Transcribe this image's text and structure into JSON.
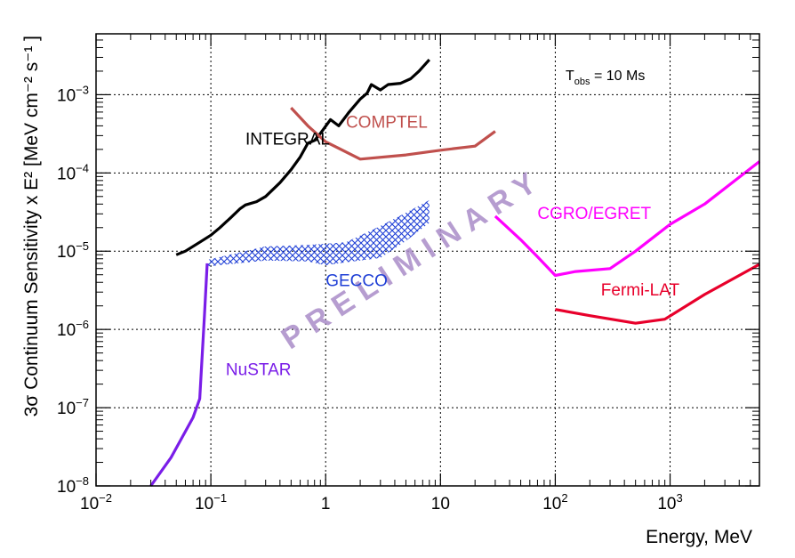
{
  "chart_data": {
    "type": "line",
    "xlabel": "Energy, MeV",
    "ylabel": "3σ Continuum Sensitivity x E² [MeV cm⁻² s⁻¹ ]",
    "xscale": "log",
    "yscale": "log",
    "xlim": [
      0.01,
      6000
    ],
    "ylim": [
      1e-08,
      0.006
    ],
    "grid": true,
    "x_ticks": [
      {
        "value": 0.01,
        "base": "10",
        "exp": "−2"
      },
      {
        "value": 0.1,
        "base": "10",
        "exp": "−1"
      },
      {
        "value": 1,
        "base": "1",
        "exp": ""
      },
      {
        "value": 10,
        "base": "10",
        "exp": ""
      },
      {
        "value": 100,
        "base": "10",
        "exp": "2"
      },
      {
        "value": 1000,
        "base": "10",
        "exp": "3"
      }
    ],
    "y_ticks": [
      {
        "value": 1e-08,
        "base": "10",
        "exp": "−8"
      },
      {
        "value": 1e-07,
        "base": "10",
        "exp": "−7"
      },
      {
        "value": 1e-06,
        "base": "10",
        "exp": "−6"
      },
      {
        "value": 1e-05,
        "base": "10",
        "exp": "−5"
      },
      {
        "value": 0.0001,
        "base": "10",
        "exp": "−4"
      },
      {
        "value": 0.001,
        "base": "10",
        "exp": "−3"
      }
    ],
    "annotation": {
      "main": "T",
      "sub": "obs",
      "rest": " = 10 Ms"
    },
    "watermark": "PRELIMINARY",
    "watermark_color": "#a98cc8",
    "series": [
      {
        "name": "INTEGRAL",
        "color": "#000000",
        "label_pos": {
          "x": 0.2,
          "y": 0.00023
        },
        "points": [
          [
            0.05,
            9e-06
          ],
          [
            0.06,
            1e-05
          ],
          [
            0.08,
            1.3e-05
          ],
          [
            0.1,
            1.6e-05
          ],
          [
            0.12,
            2e-05
          ],
          [
            0.15,
            2.7e-05
          ],
          [
            0.18,
            3.5e-05
          ],
          [
            0.2,
            3.9e-05
          ],
          [
            0.25,
            4.3e-05
          ],
          [
            0.3,
            5e-05
          ],
          [
            0.4,
            7.5e-05
          ],
          [
            0.5,
            0.00011
          ],
          [
            0.6,
            0.00016
          ],
          [
            0.7,
            0.00024
          ],
          [
            0.8,
            0.00026
          ],
          [
            0.9,
            0.00032
          ],
          [
            1.1,
            0.00048
          ],
          [
            1.3,
            0.0004
          ],
          [
            1.6,
            0.0006
          ],
          [
            2.0,
            0.00088
          ],
          [
            2.3,
            0.00105
          ],
          [
            2.5,
            0.00135
          ],
          [
            3.0,
            0.00115
          ],
          [
            3.5,
            0.00135
          ],
          [
            4.5,
            0.0014
          ],
          [
            5.5,
            0.0016
          ],
          [
            6.5,
            0.002
          ],
          [
            8.0,
            0.0028
          ]
        ]
      },
      {
        "name": "COMPTEL",
        "color": "#c0504d",
        "label_pos": {
          "x": 1.5,
          "y": 0.00038
        },
        "points": [
          [
            0.5,
            0.00068
          ],
          [
            0.7,
            0.0004
          ],
          [
            1.0,
            0.00025
          ],
          [
            2.0,
            0.00015
          ],
          [
            5.0,
            0.00017
          ],
          [
            10.0,
            0.000195
          ],
          [
            20.0,
            0.00022
          ],
          [
            30.0,
            0.00034
          ]
        ]
      },
      {
        "name": "CGRO/EGRET",
        "color": "#ff00ff",
        "label_pos": {
          "x": 70,
          "y": 2.6e-05
        },
        "points": [
          [
            30,
            2.8e-05
          ],
          [
            50,
            1.4e-05
          ],
          [
            70,
            8.5e-06
          ],
          [
            100,
            4.9e-06
          ],
          [
            150,
            5.5e-06
          ],
          [
            300,
            6e-06
          ],
          [
            500,
            1e-05
          ],
          [
            1000,
            2.2e-05
          ],
          [
            2000,
            4e-05
          ],
          [
            6000,
            0.00014
          ]
        ]
      },
      {
        "name": "Fermi-LAT",
        "color": "#e8002b",
        "label_pos": {
          "x": 250,
          "y": 2.7e-06
        },
        "points": [
          [
            100,
            1.8e-06
          ],
          [
            200,
            1.5e-06
          ],
          [
            500,
            1.2e-06
          ],
          [
            900,
            1.35e-06
          ],
          [
            2000,
            2.8e-06
          ],
          [
            6000,
            6.8e-06
          ]
        ]
      },
      {
        "name": "NuSTAR",
        "color": "#7a1de8",
        "label_pos": {
          "x": 0.135,
          "y": 2.6e-07
        },
        "points": [
          [
            0.03,
            1e-08
          ],
          [
            0.045,
            2.3e-08
          ],
          [
            0.07,
            7.5e-08
          ],
          [
            0.08,
            1.3e-07
          ],
          [
            0.088,
            1.5e-06
          ],
          [
            0.093,
            7e-06
          ]
        ]
      },
      {
        "name": "GECCO",
        "color": "#1f3fd6",
        "type": "band",
        "label_pos": {
          "x": 1.0,
          "y": 3.6e-06
        },
        "upper": [
          [
            0.095,
            7.8e-06
          ],
          [
            0.3,
            1.15e-05
          ],
          [
            0.7,
            1.2e-05
          ],
          [
            1.5,
            1.3e-05
          ],
          [
            3.0,
            2.1e-05
          ],
          [
            5.0,
            3.1e-05
          ],
          [
            8.0,
            4.5e-05
          ]
        ],
        "lower": [
          [
            0.095,
            6.4e-06
          ],
          [
            0.3,
            7.6e-06
          ],
          [
            0.7,
            7.4e-06
          ],
          [
            1.0,
            6.6e-06
          ],
          [
            1.5,
            7.2e-06
          ],
          [
            3.0,
            8.2e-06
          ],
          [
            5.0,
            1.35e-05
          ],
          [
            8.0,
            2.3e-05
          ]
        ]
      }
    ]
  }
}
